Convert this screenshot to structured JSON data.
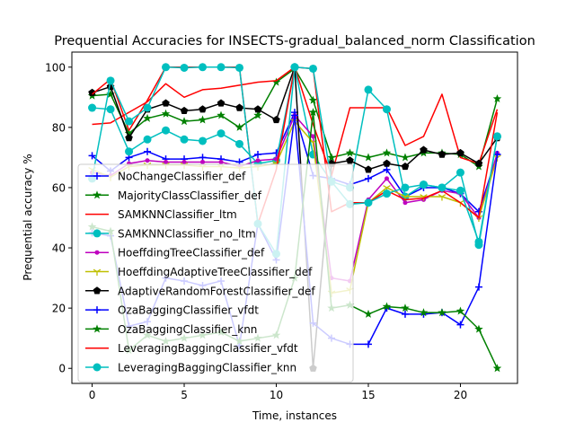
{
  "chart_data": {
    "type": "line",
    "title": "Prequential Accuracies for INSECTS-gradual_balanced_norm Classification",
    "xlabel": "Time, instances",
    "ylabel": "Prequential accuracy %",
    "xlim": [
      -1.1,
      23.1
    ],
    "ylim": [
      -5,
      105
    ],
    "xticks": [
      0,
      5,
      10,
      15,
      20
    ],
    "yticks": [
      0,
      20,
      40,
      60,
      80,
      100
    ],
    "grid": false,
    "legend_position": "lower-left",
    "x": [
      0,
      1,
      2,
      3,
      4,
      5,
      6,
      7,
      8,
      9,
      10,
      11,
      12,
      13,
      14,
      15,
      16,
      17,
      18,
      19,
      20,
      21,
      22
    ],
    "series": [
      {
        "name": "NoChangeClassifier_def",
        "color": "#0000ff",
        "marker": "plus",
        "values": [
          70.6,
          65.5,
          70,
          72,
          69.5,
          69.5,
          70,
          69.5,
          68.5,
          71,
          71.5,
          85,
          64,
          63,
          61,
          63,
          66,
          57,
          60,
          60,
          58,
          52,
          71
        ]
      },
      {
        "name": "MajorityClassClassifier_def",
        "color": "#008000",
        "marker": "star",
        "values": [
          90.5,
          91,
          78,
          83,
          84.5,
          82,
          82.5,
          84,
          80,
          84,
          95,
          99.5,
          89,
          70,
          71.5,
          70,
          71.5,
          70,
          71.5,
          71.5,
          71,
          67,
          89.5
        ]
      },
      {
        "name": "SAMKNNClassifier_ltm",
        "color": "#ff0000",
        "marker": "none",
        "values": [
          81,
          81.5,
          85,
          88.5,
          94.5,
          90,
          92.5,
          93,
          94,
          95,
          95.5,
          100,
          81,
          64,
          86.5,
          86.5,
          86.5,
          74,
          77,
          91,
          70,
          68,
          86
        ]
      },
      {
        "name": "SAMKNNClassifier_no_ltm",
        "color": "#00bfbf",
        "marker": "circle",
        "values": [
          86.5,
          86,
          72,
          76,
          79,
          76,
          75.5,
          78,
          74.5,
          68,
          69,
          100,
          71,
          62,
          60,
          92.5,
          86,
          57,
          61,
          60,
          65,
          41,
          77
        ]
      },
      {
        "name": "HoeffdingTreeClassifier_def",
        "color": "#bf00bf",
        "marker": "dot",
        "values": [
          65,
          64,
          68,
          69,
          68.5,
          68.5,
          68.5,
          68.5,
          67,
          69,
          69.5,
          84,
          77,
          30,
          29,
          56,
          63,
          55,
          56,
          59,
          58,
          50,
          71.5
        ]
      },
      {
        "name": "HoeffdingAdaptiveTreeClassifier_def",
        "color": "#bfbf00",
        "marker": "tri_down",
        "values": [
          66,
          63.5,
          67,
          67.5,
          67.5,
          67.5,
          67,
          67,
          66.5,
          67,
          68,
          82,
          75,
          25,
          26,
          55,
          60,
          57,
          57,
          57,
          55,
          50,
          70
        ]
      },
      {
        "name": "AdaptiveRandomForestClassifier_def",
        "color": "#000000",
        "marker": "pentagon",
        "values": [
          91.5,
          93.5,
          76.5,
          86,
          88,
          85.5,
          86,
          88,
          86.5,
          86,
          82.5,
          100,
          0,
          68,
          69,
          66,
          68,
          67,
          72.5,
          71,
          71.5,
          68,
          76.5
        ]
      },
      {
        "name": "OzaBaggingClassifier_vfdt",
        "color": "#0000ff",
        "marker": "plus",
        "values": [
          45,
          44,
          14,
          15.5,
          30,
          29,
          27.5,
          29,
          7.5,
          48,
          36,
          84,
          15,
          10,
          8,
          8,
          20,
          18,
          18,
          18.5,
          14.5,
          27,
          71
        ]
      },
      {
        "name": "OzaBaggingClassifier_knn",
        "color": "#008000",
        "marker": "star",
        "values": [
          47,
          45.5,
          6,
          11,
          9,
          10,
          11,
          12,
          9,
          10,
          11,
          30,
          85,
          20,
          21,
          18,
          20.5,
          20,
          18.5,
          18.5,
          19,
          13,
          0
        ]
      },
      {
        "name": "LeveragingBaggingClassifier_vfdt",
        "color": "#ff0000",
        "marker": "none",
        "values": [
          91,
          96,
          79,
          89,
          100,
          100,
          100,
          100,
          100,
          48,
          66,
          100,
          99.5,
          52,
          55,
          55,
          59,
          56,
          56.5,
          59,
          55,
          50,
          85
        ]
      },
      {
        "name": "LeveragingBaggingClassifier_knn",
        "color": "#00bfbf",
        "marker": "circle",
        "values": [
          63,
          95.5,
          82,
          86.5,
          100,
          99.8,
          100,
          100,
          99.8,
          48,
          38,
          100,
          99.5,
          62,
          54.5,
          55,
          58,
          60,
          61,
          60,
          59,
          42,
          77
        ]
      }
    ]
  }
}
